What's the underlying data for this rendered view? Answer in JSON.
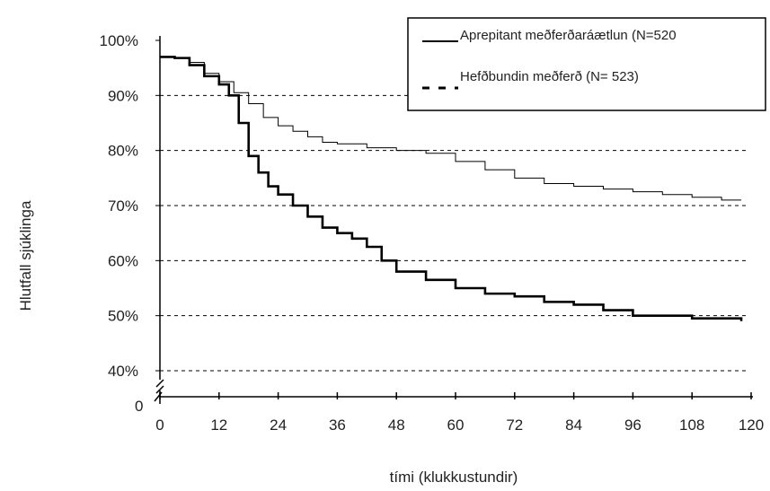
{
  "chart_data": {
    "type": "line",
    "title": "",
    "xlabel": "tími (klukkustundir)",
    "ylabel": "Hlutfall sjúklinga",
    "xlim": [
      0,
      120
    ],
    "ylim": [
      40,
      100
    ],
    "x_ticks": [
      "0",
      "12",
      "24",
      "36",
      "48",
      "60",
      "72",
      "84",
      "96",
      "108",
      "120"
    ],
    "y_ticks": [
      "100%",
      "90%",
      "80%",
      "70%",
      "60%",
      "50%",
      "40%"
    ],
    "y_zero_label": "0",
    "y_axis_break": true,
    "x_axis_break": true,
    "grid": "horizontal dashed",
    "legend_position": "top-right",
    "series": [
      {
        "name": "Aprepitant meðferðaráætlun (N=520",
        "style": "solid",
        "x": [
          0,
          3,
          6,
          9,
          12,
          15,
          18,
          21,
          24,
          27,
          30,
          33,
          36,
          42,
          48,
          54,
          60,
          66,
          72,
          78,
          84,
          90,
          96,
          102,
          108,
          114,
          118
        ],
        "y": [
          97,
          96.8,
          96,
          94,
          92.5,
          90.5,
          88.5,
          86,
          84.5,
          83.5,
          82.5,
          81.5,
          81.2,
          80.5,
          80,
          79.5,
          78,
          76.5,
          75,
          74,
          73.5,
          73,
          72.5,
          72,
          71.5,
          71,
          71
        ]
      },
      {
        "name": "Hefðbundin meðferð (N= 523)",
        "style": "dashed",
        "x": [
          0,
          3,
          6,
          9,
          12,
          14,
          16,
          18,
          20,
          22,
          24,
          27,
          30,
          33,
          36,
          39,
          42,
          45,
          48,
          54,
          60,
          66,
          72,
          78,
          84,
          90,
          96,
          102,
          108,
          114,
          118
        ],
        "y": [
          97,
          96.8,
          95.5,
          93.5,
          92,
          90,
          85,
          79,
          76,
          73.5,
          72,
          70,
          68,
          66,
          65,
          64,
          62.5,
          60,
          58,
          56.5,
          55,
          54,
          53.5,
          52.5,
          52,
          51,
          50,
          50,
          49.5,
          49.5,
          49
        ]
      }
    ]
  }
}
